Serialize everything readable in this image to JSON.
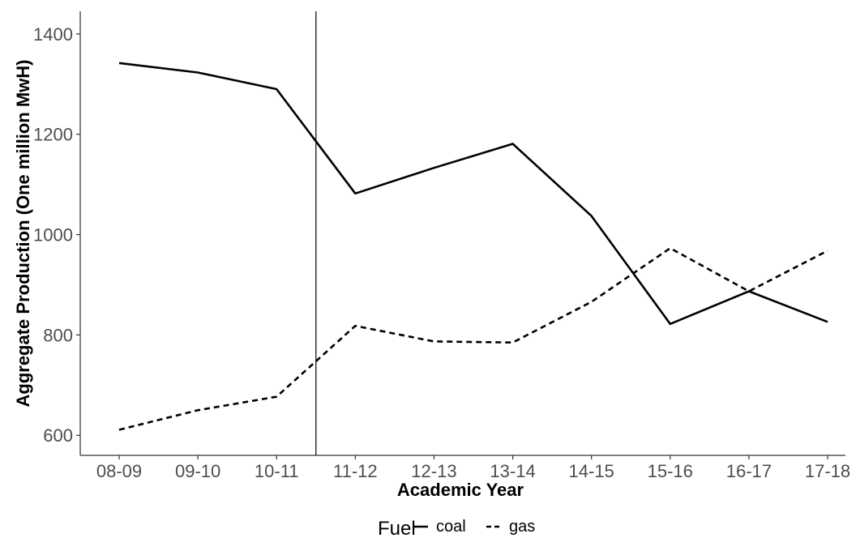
{
  "chart_data": {
    "type": "line",
    "xlabel": "Academic Year",
    "ylabel": "Aggregate Production (One million MwH)",
    "categories": [
      "08-09",
      "09-10",
      "10-11",
      "11-12",
      "12-13",
      "13-14",
      "14-15",
      "15-16",
      "16-17",
      "17-18"
    ],
    "yticks": [
      600,
      800,
      1000,
      1200,
      1400
    ],
    "ylim": [
      560,
      1445
    ],
    "grid": false,
    "vline_after_category_index": 2.5,
    "legend": {
      "title": "Fuel",
      "position": "bottom",
      "entries": [
        {
          "label": "coal",
          "linestyle": "solid"
        },
        {
          "label": "gas",
          "linestyle": "dashed"
        }
      ]
    },
    "series": [
      {
        "name": "coal",
        "linestyle": "solid",
        "values": [
          1342,
          1323,
          1290,
          1082,
          1133,
          1181,
          1037,
          822,
          887,
          826
        ]
      },
      {
        "name": "gas",
        "linestyle": "dashed",
        "values": [
          611,
          650,
          677,
          818,
          787,
          785,
          866,
          973,
          887,
          968
        ]
      }
    ],
    "colors": {
      "line": "#000000",
      "axis": "#333333",
      "tick_text": "#4d4d4d"
    }
  }
}
